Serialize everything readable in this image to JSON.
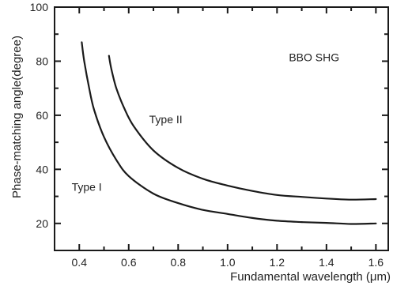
{
  "chart_data": {
    "type": "line",
    "title": "",
    "xlabel": "Fundamental wavelength (μm)",
    "ylabel": "Phase-matching angle(degree)",
    "xlim": [
      0.3,
      1.65
    ],
    "ylim": [
      10,
      100
    ],
    "x_ticks": [
      0.4,
      0.6,
      0.8,
      1.0,
      1.2,
      1.4,
      1.6
    ],
    "x_tick_labels": [
      "0.4",
      "0.6",
      "0.8",
      "1.0",
      "1.2",
      "1.4",
      "1.6"
    ],
    "y_ticks": [
      20,
      40,
      60,
      80,
      100
    ],
    "y_tick_labels": [
      "20",
      "40",
      "60",
      "80",
      "100"
    ],
    "grid": false,
    "annotations": [
      {
        "text": "BBO SHG",
        "x": 1.35,
        "y": 80
      },
      {
        "text": "Type II",
        "x": 0.75,
        "y": 57
      },
      {
        "text": "Type I",
        "x": 0.43,
        "y": 32
      }
    ],
    "series": [
      {
        "name": "Type I",
        "x": [
          0.41,
          0.42,
          0.44,
          0.46,
          0.5,
          0.55,
          0.6,
          0.7,
          0.8,
          0.9,
          1.0,
          1.1,
          1.2,
          1.3,
          1.4,
          1.5,
          1.6
        ],
        "y": [
          87,
          80,
          70,
          62,
          52,
          43.5,
          37.5,
          31,
          27.5,
          25,
          23.5,
          22,
          21,
          20.5,
          20.2,
          19.8,
          20
        ]
      },
      {
        "name": "Type II",
        "x": [
          0.52,
          0.53,
          0.55,
          0.58,
          0.62,
          0.7,
          0.8,
          0.9,
          1.0,
          1.1,
          1.2,
          1.3,
          1.4,
          1.5,
          1.6
        ],
        "y": [
          82,
          77,
          70,
          63,
          56,
          47,
          40.5,
          36.5,
          34,
          32,
          30.5,
          29.8,
          29.2,
          28.8,
          29
        ]
      }
    ]
  }
}
